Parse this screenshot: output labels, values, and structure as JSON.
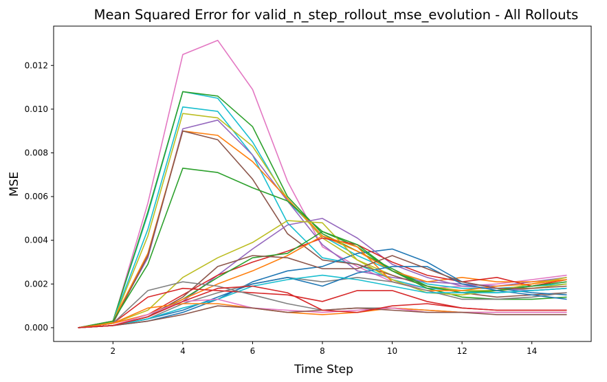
{
  "chart_data": {
    "type": "line",
    "title": "Mean Squared Error for valid_n_step_rollout_mse_evolution - All Rollouts",
    "xlabel": "Time Step",
    "ylabel": "MSE",
    "xlim": [
      0.3,
      15.7
    ],
    "ylim": [
      -0.00063,
      0.0138
    ],
    "xticks": [
      2,
      4,
      6,
      8,
      10,
      12,
      14
    ],
    "yticks": [
      0.0,
      0.002,
      0.004,
      0.006,
      0.008,
      0.01,
      0.012
    ],
    "ytick_labels": [
      "0.000",
      "0.002",
      "0.004",
      "0.006",
      "0.008",
      "0.010",
      "0.012"
    ],
    "grid": false,
    "legend": "none",
    "x": [
      1,
      2,
      3,
      4,
      5,
      6,
      7,
      8,
      9,
      10,
      11,
      12,
      13,
      14,
      15
    ],
    "series": [
      {
        "color": "#e377c2",
        "values": [
          0,
          0.00025,
          0.0057,
          0.0125,
          0.01315,
          0.0109,
          0.0067,
          0.0037,
          0.0028,
          0.0021,
          0.0018,
          0.0019,
          0.002,
          0.0022,
          0.0024
        ]
      },
      {
        "color": "#17becf",
        "values": [
          0,
          0.0003,
          0.0052,
          0.0108,
          0.0105,
          0.0085,
          0.0058,
          0.0042,
          0.0033,
          0.0026,
          0.002,
          0.0018,
          0.0018,
          0.0019,
          0.002
        ]
      },
      {
        "color": "#2ca02c",
        "values": [
          0,
          0.0003,
          0.0053,
          0.0108,
          0.0106,
          0.0092,
          0.006,
          0.0043,
          0.0035,
          0.0027,
          0.0019,
          0.0016,
          0.0017,
          0.0019,
          0.0022
        ]
      },
      {
        "color": "#17becf",
        "values": [
          0,
          0.0003,
          0.0045,
          0.0101,
          0.0099,
          0.0079,
          0.0048,
          0.0032,
          0.0029,
          0.0022,
          0.0018,
          0.0017,
          0.0016,
          0.0017,
          0.0018
        ]
      },
      {
        "color": "#bcbd22",
        "values": [
          0,
          0.00025,
          0.0042,
          0.0098,
          0.0096,
          0.0083,
          0.0059,
          0.0041,
          0.0031,
          0.0024,
          0.0019,
          0.0017,
          0.0017,
          0.0018,
          0.002
        ]
      },
      {
        "color": "#9467bd",
        "values": [
          0,
          0.0003,
          0.0032,
          0.0091,
          0.0095,
          0.0079,
          0.0058,
          0.0038,
          0.0026,
          0.0023,
          0.0021,
          0.002,
          0.0019,
          0.0021,
          0.0023
        ]
      },
      {
        "color": "#ff7f0e",
        "values": [
          0,
          0.0003,
          0.0034,
          0.009,
          0.0088,
          0.0076,
          0.0059,
          0.0042,
          0.0035,
          0.0026,
          0.0021,
          0.0023,
          0.0021,
          0.0021,
          0.0022
        ]
      },
      {
        "color": "#8c564b",
        "values": [
          0,
          0.0002,
          0.0033,
          0.009,
          0.0086,
          0.0068,
          0.0043,
          0.0031,
          0.0029,
          0.0024,
          0.0019,
          0.0016,
          0.0014,
          0.0015,
          0.0016
        ]
      },
      {
        "color": "#2ca02c",
        "values": [
          0,
          0.0003,
          0.0029,
          0.0073,
          0.0071,
          0.0064,
          0.0058,
          0.0044,
          0.0037,
          0.0026,
          0.0018,
          0.0014,
          0.0013,
          0.0013,
          0.0014
        ]
      },
      {
        "color": "#1f77b4",
        "values": [
          0,
          0.0001,
          0.0003,
          0.0007,
          0.0013,
          0.0021,
          0.0026,
          0.0028,
          0.0034,
          0.0036,
          0.003,
          0.0021,
          0.0018,
          0.0016,
          0.0015
        ]
      },
      {
        "color": "#9467bd",
        "values": [
          0,
          0.0001,
          0.0005,
          0.0012,
          0.0024,
          0.0036,
          0.0047,
          0.005,
          0.0041,
          0.0029,
          0.0023,
          0.0019,
          0.0018,
          0.0017,
          0.0018
        ]
      },
      {
        "color": "#bcbd22",
        "values": [
          0,
          0.0002,
          0.0008,
          0.0023,
          0.0032,
          0.0039,
          0.0049,
          0.0048,
          0.0031,
          0.0022,
          0.0016,
          0.0015,
          0.0017,
          0.002,
          0.0023
        ]
      },
      {
        "color": "#d62728",
        "values": [
          0,
          0.0002,
          0.0006,
          0.0015,
          0.0024,
          0.003,
          0.0035,
          0.0041,
          0.0038,
          0.003,
          0.0024,
          0.0021,
          0.0023,
          0.0019,
          0.0022
        ]
      },
      {
        "color": "#2ca02c",
        "values": [
          0,
          0.0001,
          0.0005,
          0.0013,
          0.0023,
          0.0032,
          0.0034,
          0.0044,
          0.0038,
          0.0026,
          0.0019,
          0.0016,
          0.0017,
          0.0019,
          0.0021
        ]
      },
      {
        "color": "#ff7f0e",
        "values": [
          0,
          0.0002,
          0.0006,
          0.0013,
          0.002,
          0.0026,
          0.0033,
          0.0042,
          0.0037,
          0.0021,
          0.0017,
          0.0017,
          0.0019,
          0.002,
          0.0022
        ]
      },
      {
        "color": "#7f7f7f",
        "values": [
          0,
          0.0001,
          0.0004,
          0.0011,
          0.0016,
          0.002,
          0.0023,
          0.0021,
          0.0023,
          0.0021,
          0.0017,
          0.0013,
          0.0013,
          0.0014,
          0.0016
        ]
      },
      {
        "color": "#1f77b4",
        "values": [
          0,
          0.0001,
          0.0004,
          0.0008,
          0.0014,
          0.002,
          0.0023,
          0.0019,
          0.0025,
          0.0028,
          0.0028,
          0.002,
          0.0017,
          0.0015,
          0.0013
        ]
      },
      {
        "color": "#8c564b",
        "values": [
          0,
          0.0001,
          0.0005,
          0.0014,
          0.0028,
          0.0033,
          0.0032,
          0.0027,
          0.0027,
          0.0033,
          0.0027,
          0.0021,
          0.0018,
          0.0018,
          0.0019
        ]
      },
      {
        "color": "#17becf",
        "values": [
          0,
          0.0001,
          0.0004,
          0.0009,
          0.0013,
          0.0019,
          0.0022,
          0.0024,
          0.0022,
          0.0019,
          0.0016,
          0.0016,
          0.0016,
          0.0017,
          0.0018
        ]
      },
      {
        "color": "#d62728",
        "values": [
          0,
          0.0002,
          0.0014,
          0.0018,
          0.0017,
          0.0016,
          0.0015,
          0.0012,
          0.0017,
          0.0017,
          0.0012,
          0.0009,
          0.0008,
          0.0008,
          0.0008
        ]
      },
      {
        "color": "#7f7f7f",
        "values": [
          0,
          0.0002,
          0.0017,
          0.0021,
          0.0019,
          0.0015,
          0.0011,
          0.0008,
          0.0009,
          0.0009,
          0.0008,
          0.0007,
          0.0007,
          0.0007,
          0.0007
        ]
      },
      {
        "color": "#ff7f0e",
        "values": [
          0,
          0.0002,
          0.0009,
          0.0011,
          0.0011,
          0.0009,
          0.0007,
          0.0006,
          0.0007,
          0.0009,
          0.0008,
          0.0007,
          0.0007,
          0.0007,
          0.0007
        ]
      },
      {
        "color": "#e377c2",
        "values": [
          0,
          0.0001,
          0.0006,
          0.0012,
          0.0013,
          0.0009,
          0.0008,
          0.0007,
          0.0008,
          0.0009,
          0.0007,
          0.0007,
          0.0007,
          0.0007,
          0.0007
        ]
      },
      {
        "color": "#8c564b",
        "values": [
          0,
          0.0001,
          0.0003,
          0.0006,
          0.001,
          0.0009,
          0.0007,
          0.0008,
          0.0009,
          0.0008,
          0.0007,
          0.0007,
          0.0006,
          0.0006,
          0.0006
        ]
      },
      {
        "color": "#d62728",
        "values": [
          0,
          0.0001,
          0.0005,
          0.0012,
          0.0018,
          0.0019,
          0.0016,
          0.0008,
          0.0007,
          0.001,
          0.0011,
          0.0009,
          0.0008,
          0.0008,
          0.0008
        ]
      }
    ]
  }
}
